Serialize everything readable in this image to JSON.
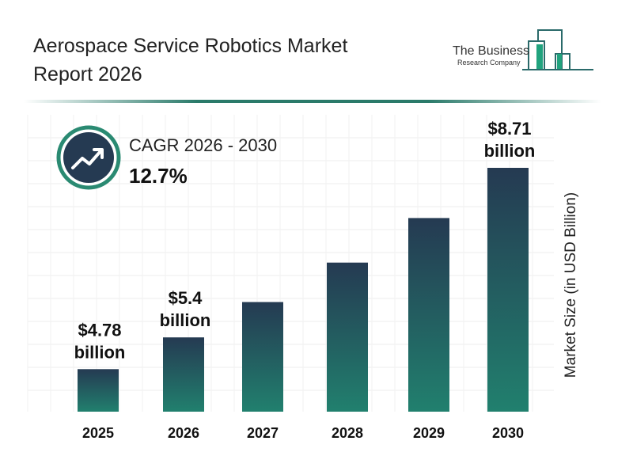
{
  "title": "Aerospace Service Robotics Market Report 2026",
  "logo": {
    "line1": "The Business",
    "line2": "Research Company"
  },
  "cagr": {
    "label": "CAGR 2026 - 2030",
    "value": "12.7%",
    "icon": "trending-up-icon"
  },
  "colors": {
    "bar_top": "#253a52",
    "bar_bottom": "#21806e",
    "accent": "#2a8a72"
  },
  "chart_data": {
    "type": "bar",
    "title": "Aerospace Service Robotics Market Report 2026",
    "ylabel": "Market Size (in USD Billion)",
    "xlabel": "",
    "categories": [
      "2025",
      "2026",
      "2027",
      "2028",
      "2029",
      "2030"
    ],
    "values": [
      4.78,
      5.4,
      6.09,
      6.86,
      7.73,
      8.71
    ],
    "data_labels": {
      "2025": "$4.78 billion",
      "2026": "$5.4 billion",
      "2030": "$8.71 billion"
    },
    "grid": true
  }
}
